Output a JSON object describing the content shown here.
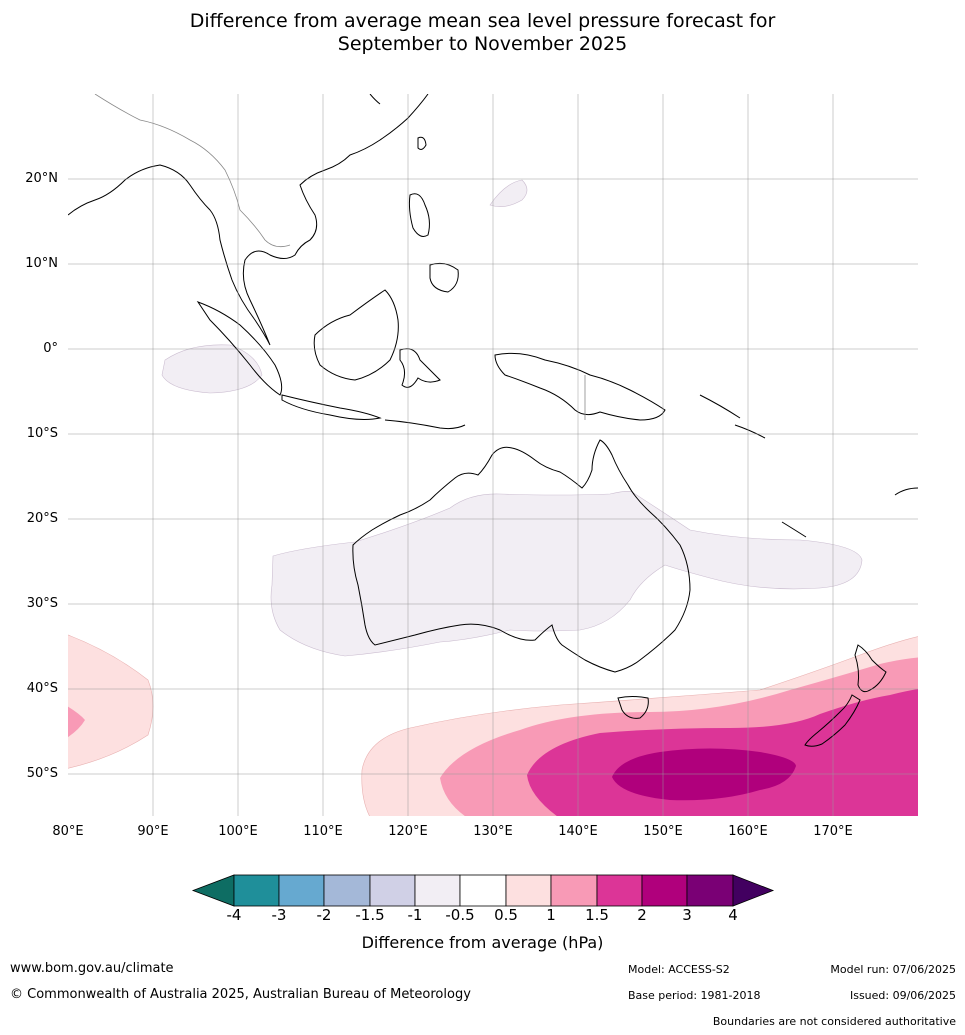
{
  "title": {
    "line1": "Difference from average mean sea level pressure forecast for",
    "line2": "September to November 2025"
  },
  "axes": {
    "lat_labels": [
      "20°N",
      "10°N",
      "0°",
      "10°S",
      "20°S",
      "30°S",
      "40°S",
      "50°S"
    ],
    "lon_labels": [
      "80°E",
      "90°E",
      "100°E",
      "110°E",
      "120°E",
      "130°E",
      "140°E",
      "150°E",
      "160°E",
      "170°E"
    ]
  },
  "colorbar": {
    "title": "Difference from average (hPa)",
    "ticks": [
      "-4",
      "-3",
      "-2",
      "-1.5",
      "-1",
      "-0.5",
      "0.5",
      "1",
      "1.5",
      "2",
      "3",
      "4"
    ],
    "colors": [
      "#0e6d63",
      "#1f8f9a",
      "#66a9d0",
      "#a4b8d8",
      "#d0d0e6",
      "#f2eef4",
      "#ffffff",
      "#fde0e0",
      "#f89ab6",
      "#dc3597",
      "#b0007c",
      "#7a0075",
      "#420060"
    ]
  },
  "footer": {
    "website": "www.bom.gov.au/climate",
    "copyright": "© Commonwealth of Australia 2025, Australian Bureau of Meteorology",
    "model": "Model: ACCESS-S2",
    "base_period": "Base period: 1981-2018",
    "model_run": "Model run: 07/06/2025",
    "issued": "Issued: 09/06/2025",
    "disclaimer": "Boundaries are not considered authoritative"
  }
}
